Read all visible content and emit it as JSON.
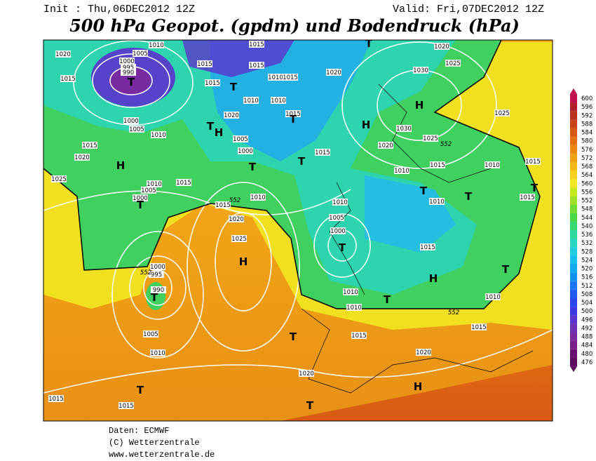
{
  "header": {
    "init": "Init : Thu,06DEC2012 12Z",
    "valid": "Valid: Fri,07DEC2012 12Z",
    "title": "500 hPa Geopot. (gpdm) und Bodendruck (hPa)"
  },
  "map": {
    "pressure_labels": [
      1010,
      1005,
      1000,
      995,
      990,
      1020,
      1015,
      1015,
      1015,
      1015,
      1015,
      1010,
      1015,
      1010,
      1010,
      1020,
      1015,
      1005,
      1000,
      1000,
      1005,
      1010,
      1015,
      1020,
      1025,
      1010,
      1005,
      1000,
      1015,
      1015,
      1010,
      1020,
      1025,
      1015,
      1010,
      1005,
      1000,
      1020,
      1030,
      1025,
      1020,
      1025,
      1020,
      1030,
      1015,
      1010,
      1010,
      1015,
      1015,
      1010,
      1015,
      1010,
      1015,
      1010,
      1010,
      1015,
      1020,
      1020,
      1000,
      995,
      990,
      1005,
      1010,
      1015,
      1015,
      1025
    ],
    "contour_labels": [
      552,
      552,
      552,
      552
    ],
    "centers": [
      "T",
      "H",
      "H",
      "H",
      "H",
      "H",
      "H",
      "H",
      "T",
      "T",
      "T",
      "T",
      "T",
      "T",
      "T",
      "T",
      "T",
      "T",
      "T",
      "T",
      "T",
      "T",
      "T",
      "T",
      "T"
    ]
  },
  "colorbar": {
    "ticks": [
      476,
      480,
      484,
      488,
      492,
      496,
      500,
      504,
      508,
      512,
      516,
      520,
      524,
      528,
      532,
      536,
      540,
      544,
      548,
      552,
      556,
      560,
      564,
      568,
      572,
      576,
      580,
      584,
      588,
      592,
      596,
      600
    ],
    "colors": [
      "#5c0a5c",
      "#6a1070",
      "#781f88",
      "#7a2aa0",
      "#6e30b8",
      "#5a34cc",
      "#3c36de",
      "#2a44ee",
      "#1e5cf4",
      "#1876f6",
      "#1090f4",
      "#10a8f2",
      "#18bcee",
      "#20cce0",
      "#28d4c0",
      "#30d89c",
      "#38d870",
      "#48d848",
      "#70dc30",
      "#a0e028",
      "#c8e820",
      "#f0e820",
      "#f8d018",
      "#f8b814",
      "#f4a010",
      "#ee880c",
      "#e4700c",
      "#d85810",
      "#c84418",
      "#b83020",
      "#b0202c",
      "#c01050"
    ]
  },
  "footer": [
    "Daten: ECMWF",
    "(C) Wetterzentrale",
    "www.wetterzentrale.de"
  ]
}
